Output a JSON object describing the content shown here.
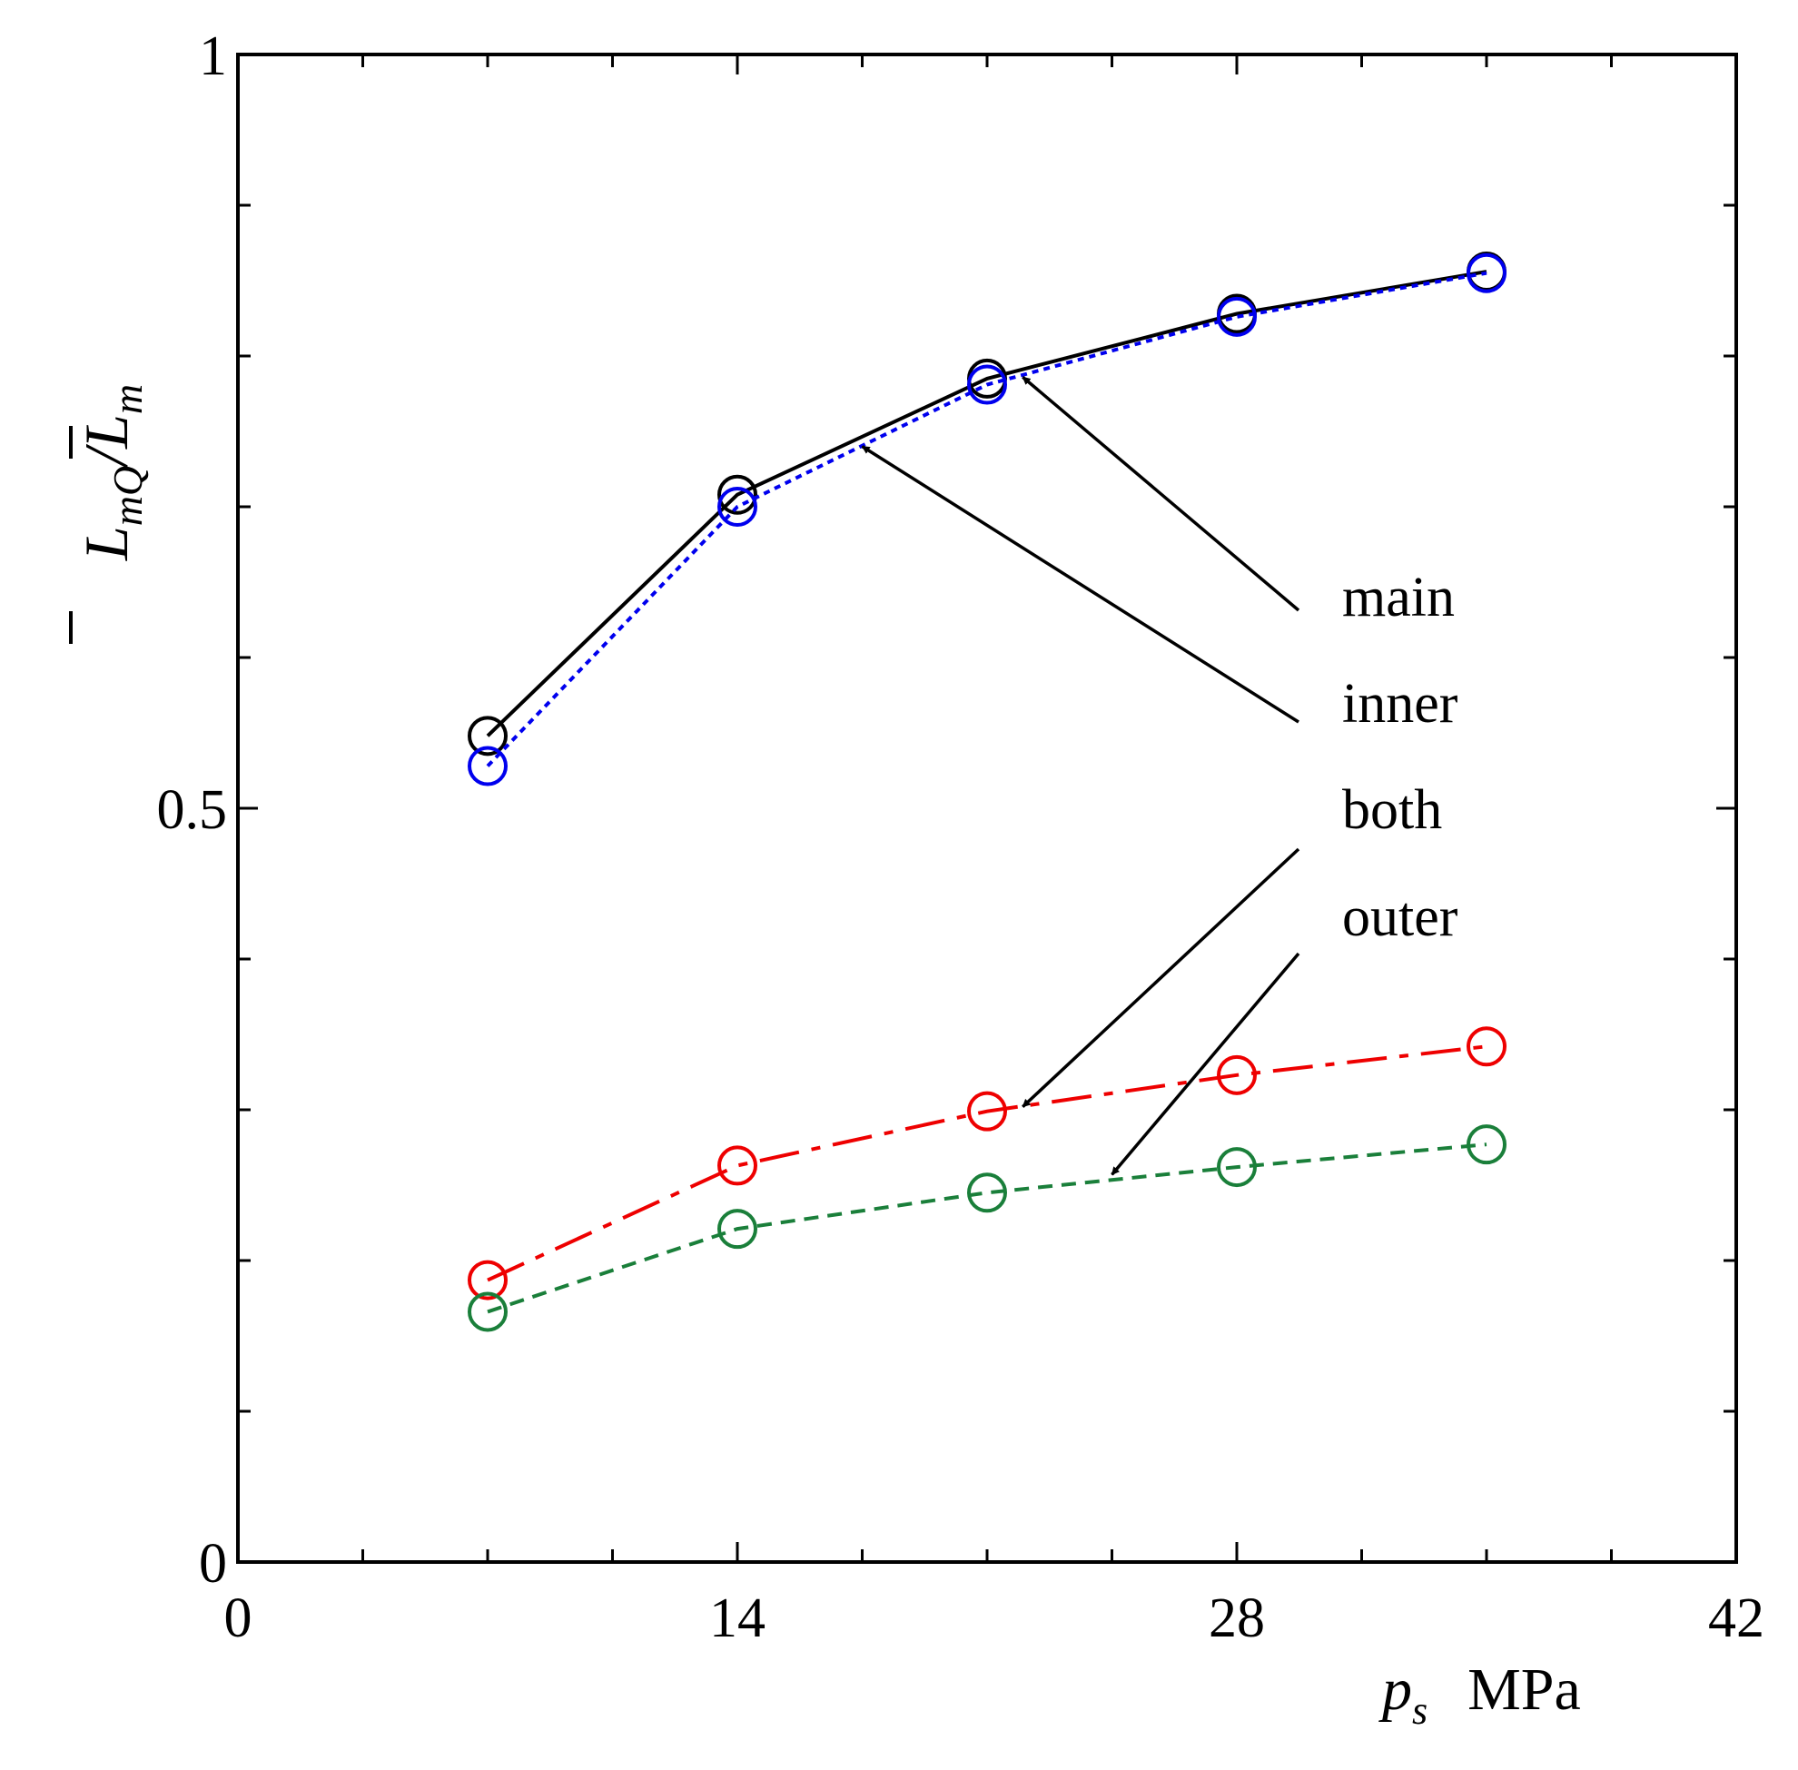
{
  "chart_data": {
    "type": "line",
    "title": "",
    "xlabel": {
      "symbol": "p",
      "subscript": "s",
      "unit": "MPa"
    },
    "ylabel": {
      "num_symbol": "L",
      "num_subscript": "mQ",
      "slash": "/",
      "den_symbol": "L",
      "den_subscript": "m"
    },
    "xlim": [
      0,
      42
    ],
    "ylim": [
      0,
      1
    ],
    "x_ticks": [
      0,
      14,
      28,
      42
    ],
    "x_tick_labels": [
      "0",
      "14",
      "28",
      "42"
    ],
    "y_ticks": [
      0,
      0.5,
      1
    ],
    "y_tick_labels": [
      "0",
      "0.5",
      "1"
    ],
    "x_minor_step": 3.5,
    "y_minor_step": 0.1,
    "grid": false,
    "x": [
      7,
      14,
      21,
      28,
      35
    ],
    "series": [
      {
        "name": "main",
        "color": "#000000",
        "dash": "solid",
        "values": [
          0.548,
          0.708,
          0.785,
          0.828,
          0.856
        ]
      },
      {
        "name": "inner",
        "color": "#0000ee",
        "dash": "dotted",
        "values": [
          0.528,
          0.7,
          0.781,
          0.826,
          0.855
        ]
      },
      {
        "name": "both",
        "color": "#ee0000",
        "dash": "dashdot",
        "values": [
          0.187,
          0.263,
          0.299,
          0.323,
          0.342
        ]
      },
      {
        "name": "outer",
        "color": "#1a7f3a",
        "dash": "dashed",
        "values": [
          0.166,
          0.221,
          0.245,
          0.262,
          0.277
        ]
      }
    ],
    "annotations": [
      {
        "label": "main",
        "series": "main",
        "arrow_target": [
          22.0,
          0.786
        ]
      },
      {
        "label": "inner",
        "series": "inner",
        "arrow_target": [
          17.5,
          0.74
        ]
      },
      {
        "label": "both",
        "series": "both",
        "arrow_target": [
          22.0,
          0.302
        ]
      },
      {
        "label": "outer",
        "series": "outer",
        "arrow_target": [
          24.5,
          0.257
        ]
      }
    ]
  }
}
